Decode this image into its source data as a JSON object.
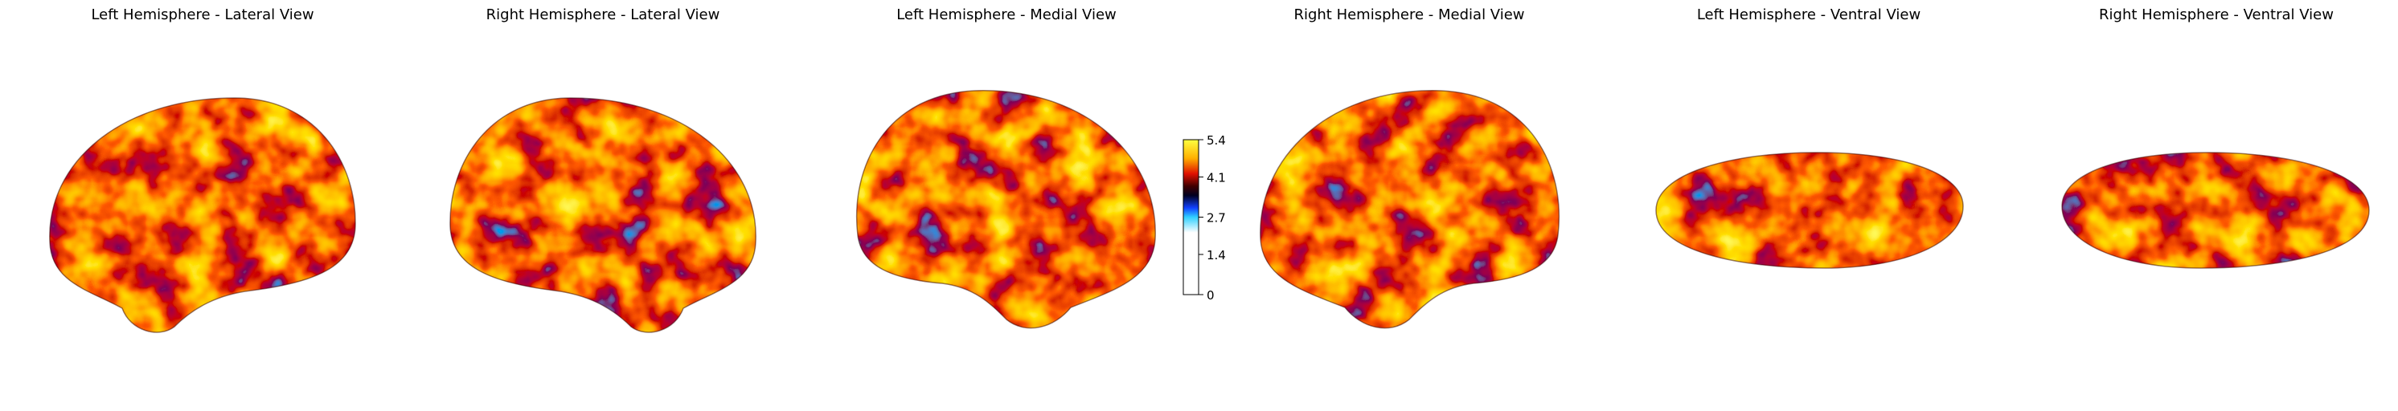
{
  "panels": [
    {
      "title": "Left Hemisphere - Lateral View"
    },
    {
      "title": "Right Hemisphere - Lateral View"
    },
    {
      "title": "Left Hemisphere - Medial View"
    },
    {
      "title": "Right Hemisphere - Medial View"
    },
    {
      "title": "Left Hemisphere - Ventral View"
    },
    {
      "title": "Right Hemisphere - Ventral View"
    }
  ],
  "colorbar": {
    "lim": [
      0,
      5.4
    ],
    "ticks": [
      0,
      1.4,
      2.7,
      4.1,
      5.4
    ]
  }
}
